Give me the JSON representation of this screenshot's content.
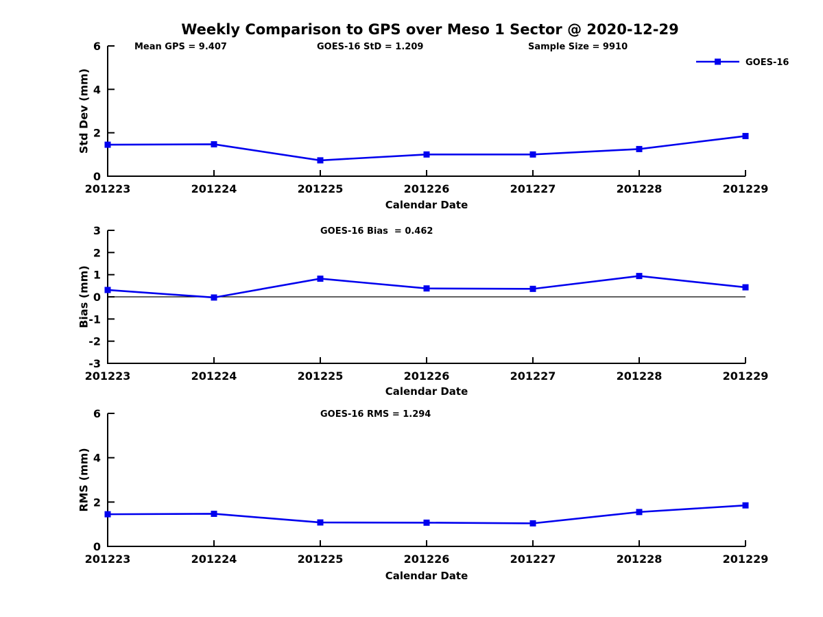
{
  "figure": {
    "title": "Weekly Comparison to GPS over Meso 1 Sector @ 2020-12-29"
  },
  "annotations": {
    "mean_gps": "Mean GPS = 9.407",
    "goes_std": "GOES-16 StD = 1.209",
    "sample_size": "Sample Size = 9910"
  },
  "legend": {
    "label": "GOES-16",
    "position": "top-right"
  },
  "colors": {
    "series_line": "#0000EE",
    "axis": "#000000",
    "text": "#000000",
    "background": "#FFFFFF"
  },
  "chart_data": [
    {
      "type": "line",
      "title": "",
      "xlabel": "Calendar Date",
      "ylabel": "Std Dev (mm)",
      "categories": [
        "201223",
        "201224",
        "201225",
        "201226",
        "201227",
        "201228",
        "201229"
      ],
      "series": [
        {
          "name": "GOES-16",
          "values": [
            1.45,
            1.47,
            0.73,
            1.0,
            1.0,
            1.25,
            1.85
          ]
        }
      ],
      "ylim": [
        0,
        6
      ],
      "yticks": [
        0,
        2,
        4,
        6
      ],
      "grid": false,
      "zero_line": false,
      "legend_position": "top-right"
    },
    {
      "type": "line",
      "title": "GOES-16 Bias  = 0.462",
      "xlabel": "Calendar Date",
      "ylabel": "Bias (mm)",
      "categories": [
        "201223",
        "201224",
        "201225",
        "201226",
        "201227",
        "201228",
        "201229"
      ],
      "series": [
        {
          "name": "GOES-16",
          "values": [
            0.31,
            -0.03,
            0.82,
            0.38,
            0.36,
            0.94,
            0.43
          ]
        }
      ],
      "ylim": [
        -3,
        3
      ],
      "yticks": [
        -3,
        -2,
        -1,
        0,
        1,
        2,
        3
      ],
      "grid": false,
      "zero_line": true,
      "legend_position": "none"
    },
    {
      "type": "line",
      "title": "GOES-16 RMS = 1.294",
      "xlabel": "Calendar Date",
      "ylabel": "RMS (mm)",
      "categories": [
        "201223",
        "201224",
        "201225",
        "201226",
        "201227",
        "201228",
        "201229"
      ],
      "series": [
        {
          "name": "GOES-16",
          "values": [
            1.45,
            1.47,
            1.08,
            1.07,
            1.04,
            1.55,
            1.85
          ]
        }
      ],
      "ylim": [
        0,
        6
      ],
      "yticks": [
        0,
        2,
        4,
        6
      ],
      "grid": false,
      "zero_line": false,
      "legend_position": "none"
    }
  ]
}
